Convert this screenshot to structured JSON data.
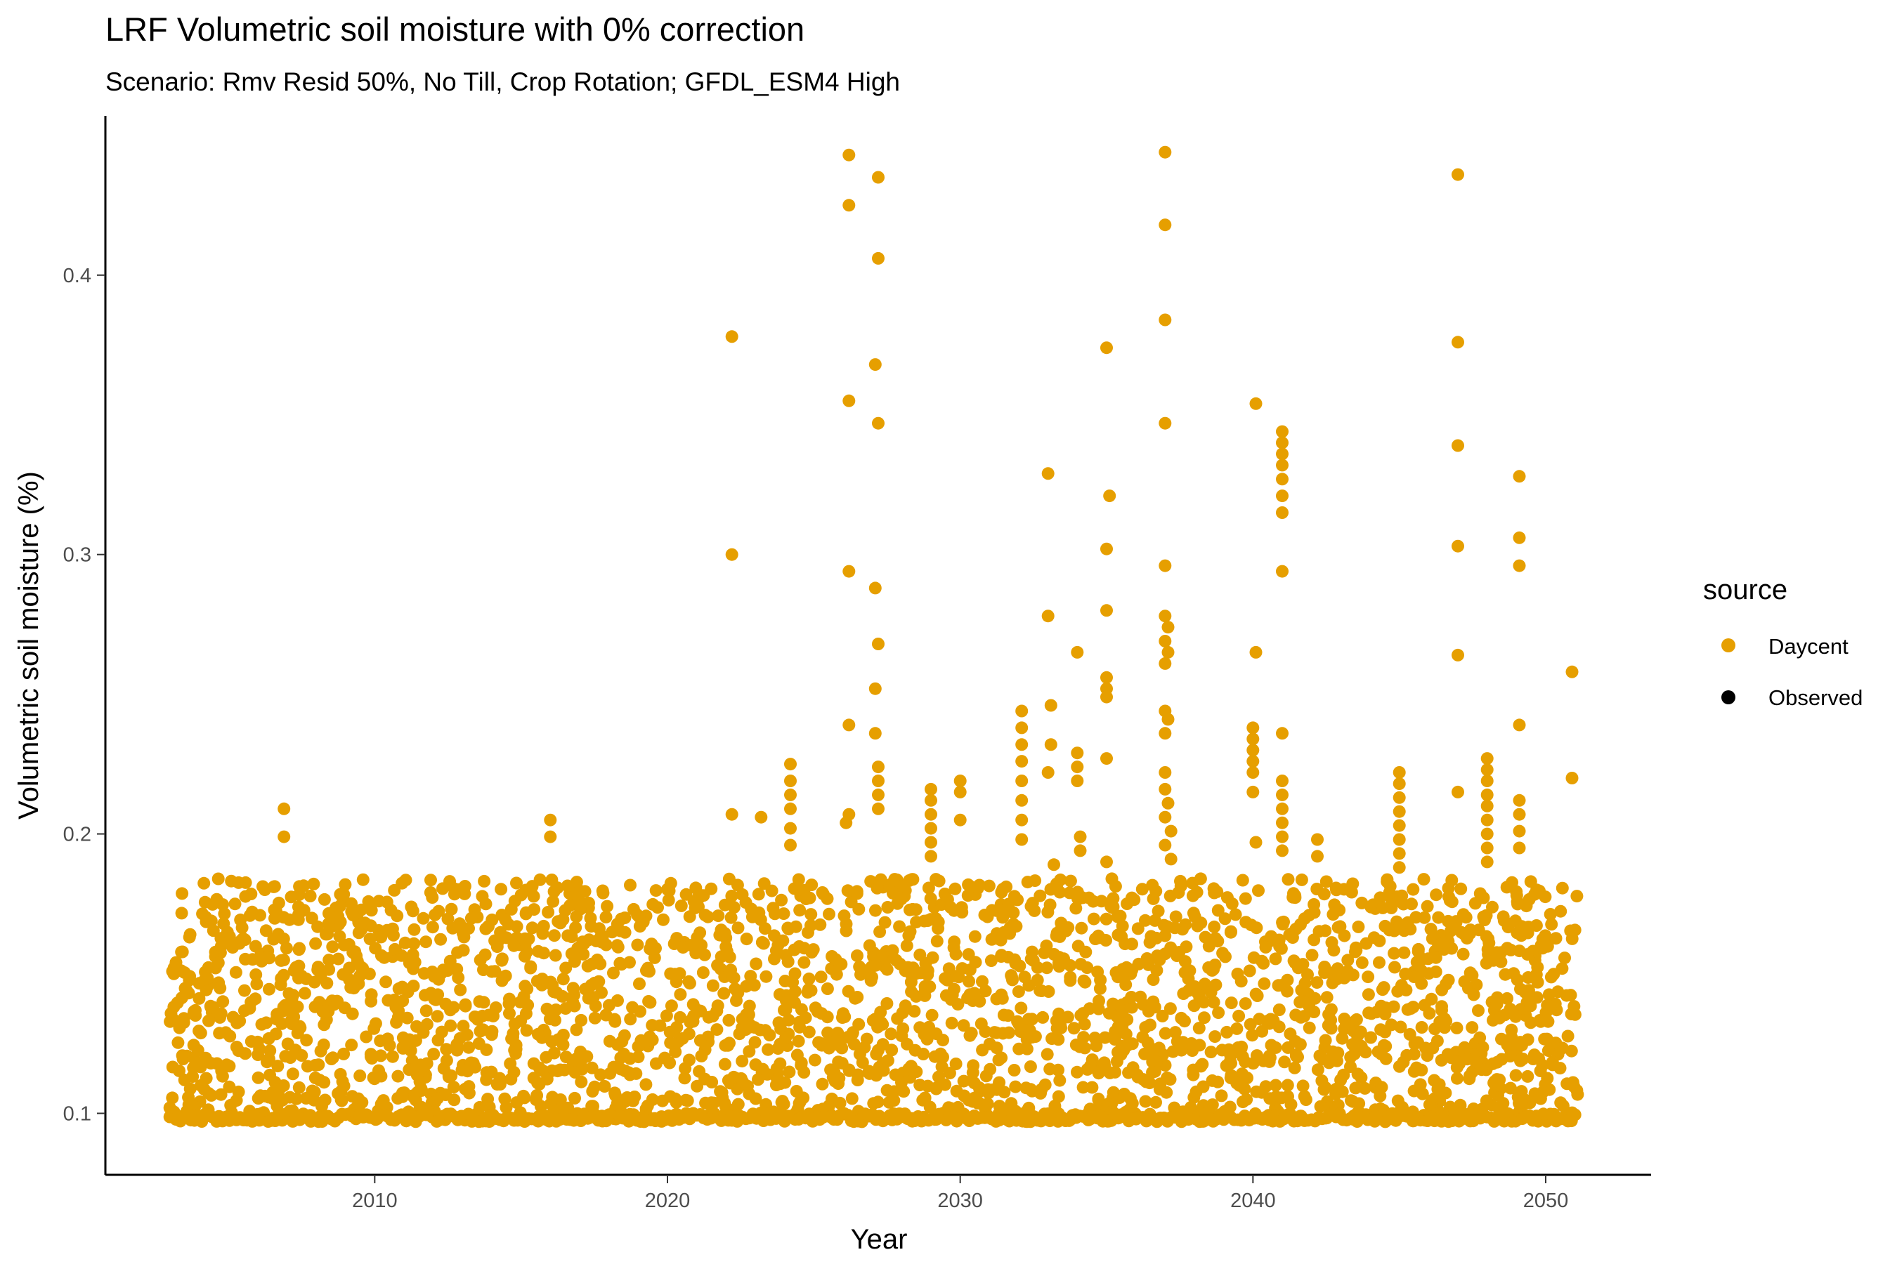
{
  "chart_data": {
    "type": "scatter",
    "title": "LRF Volumetric soil moisture with 0% correction",
    "subtitle": "Scenario: Rmv Resid 50%, No Till, Crop Rotation; GFDL_ESM4 High",
    "xlabel": "Year",
    "ylabel": "Volumetric soil moisture (%)",
    "xlim": [
      2000.8,
      2053.6
    ],
    "ylim": [
      0.078,
      0.457
    ],
    "x_ticks": [
      2010,
      2020,
      2030,
      2040,
      2050
    ],
    "x_tick_labels": [
      "2010",
      "2020",
      "2030",
      "2040",
      "2050"
    ],
    "y_ticks": [
      0.1,
      0.2,
      0.3,
      0.4
    ],
    "y_tick_labels": [
      "0.1",
      "0.2",
      "0.3",
      "0.4"
    ],
    "grid": false,
    "legend": {
      "title": "source",
      "position": "right",
      "entries": [
        {
          "name": "Daycent",
          "color": "#E69F00"
        },
        {
          "name": "Observed",
          "color": "#000000"
        }
      ]
    },
    "series": [
      {
        "name": "Daycent",
        "color": "#E69F00",
        "base_band": {
          "x_start": 2003.0,
          "x_end": 2051.1,
          "y_min": 0.097,
          "y_max": 0.184
        },
        "points": [
          {
            "x": 2003.0,
            "y": 0.102
          },
          {
            "x": 2006.9,
            "y": 0.209
          },
          {
            "x": 2006.9,
            "y": 0.199
          },
          {
            "x": 2016.0,
            "y": 0.205
          },
          {
            "x": 2016.0,
            "y": 0.199
          },
          {
            "x": 2022.2,
            "y": 0.378
          },
          {
            "x": 2022.2,
            "y": 0.3
          },
          {
            "x": 2022.2,
            "y": 0.207
          },
          {
            "x": 2023.2,
            "y": 0.206
          },
          {
            "x": 2024.2,
            "y": 0.225
          },
          {
            "x": 2024.2,
            "y": 0.219
          },
          {
            "x": 2024.2,
            "y": 0.214
          },
          {
            "x": 2024.2,
            "y": 0.209
          },
          {
            "x": 2024.2,
            "y": 0.202
          },
          {
            "x": 2024.2,
            "y": 0.196
          },
          {
            "x": 2026.2,
            "y": 0.443
          },
          {
            "x": 2026.2,
            "y": 0.425
          },
          {
            "x": 2026.2,
            "y": 0.355
          },
          {
            "x": 2026.2,
            "y": 0.294
          },
          {
            "x": 2026.2,
            "y": 0.239
          },
          {
            "x": 2026.2,
            "y": 0.207
          },
          {
            "x": 2026.1,
            "y": 0.204
          },
          {
            "x": 2027.2,
            "y": 0.435
          },
          {
            "x": 2027.2,
            "y": 0.406
          },
          {
            "x": 2027.1,
            "y": 0.368
          },
          {
            "x": 2027.2,
            "y": 0.347
          },
          {
            "x": 2027.1,
            "y": 0.288
          },
          {
            "x": 2027.2,
            "y": 0.268
          },
          {
            "x": 2027.1,
            "y": 0.252
          },
          {
            "x": 2027.1,
            "y": 0.236
          },
          {
            "x": 2027.2,
            "y": 0.224
          },
          {
            "x": 2027.2,
            "y": 0.219
          },
          {
            "x": 2027.2,
            "y": 0.214
          },
          {
            "x": 2027.2,
            "y": 0.209
          },
          {
            "x": 2029.0,
            "y": 0.216
          },
          {
            "x": 2029.0,
            "y": 0.212
          },
          {
            "x": 2029.0,
            "y": 0.207
          },
          {
            "x": 2029.0,
            "y": 0.202
          },
          {
            "x": 2029.0,
            "y": 0.197
          },
          {
            "x": 2029.0,
            "y": 0.192
          },
          {
            "x": 2030.0,
            "y": 0.219
          },
          {
            "x": 2030.0,
            "y": 0.215
          },
          {
            "x": 2030.0,
            "y": 0.205
          },
          {
            "x": 2033.0,
            "y": 0.329
          },
          {
            "x": 2033.0,
            "y": 0.278
          },
          {
            "x": 2033.1,
            "y": 0.246
          },
          {
            "x": 2033.1,
            "y": 0.232
          },
          {
            "x": 2033.0,
            "y": 0.222
          },
          {
            "x": 2033.2,
            "y": 0.189
          },
          {
            "x": 2032.1,
            "y": 0.244
          },
          {
            "x": 2032.1,
            "y": 0.238
          },
          {
            "x": 2032.1,
            "y": 0.232
          },
          {
            "x": 2032.1,
            "y": 0.226
          },
          {
            "x": 2032.1,
            "y": 0.219
          },
          {
            "x": 2032.1,
            "y": 0.212
          },
          {
            "x": 2032.1,
            "y": 0.205
          },
          {
            "x": 2032.1,
            "y": 0.198
          },
          {
            "x": 2034.0,
            "y": 0.265
          },
          {
            "x": 2034.0,
            "y": 0.229
          },
          {
            "x": 2034.0,
            "y": 0.224
          },
          {
            "x": 2034.0,
            "y": 0.219
          },
          {
            "x": 2034.1,
            "y": 0.199
          },
          {
            "x": 2034.1,
            "y": 0.194
          },
          {
            "x": 2035.0,
            "y": 0.374
          },
          {
            "x": 2035.1,
            "y": 0.321
          },
          {
            "x": 2035.0,
            "y": 0.302
          },
          {
            "x": 2035.0,
            "y": 0.28
          },
          {
            "x": 2035.0,
            "y": 0.256
          },
          {
            "x": 2035.0,
            "y": 0.252
          },
          {
            "x": 2035.0,
            "y": 0.249
          },
          {
            "x": 2035.0,
            "y": 0.227
          },
          {
            "x": 2035.0,
            "y": 0.19
          },
          {
            "x": 2037.0,
            "y": 0.444
          },
          {
            "x": 2037.0,
            "y": 0.418
          },
          {
            "x": 2037.0,
            "y": 0.384
          },
          {
            "x": 2037.0,
            "y": 0.347
          },
          {
            "x": 2037.0,
            "y": 0.296
          },
          {
            "x": 2037.0,
            "y": 0.278
          },
          {
            "x": 2037.1,
            "y": 0.274
          },
          {
            "x": 2037.0,
            "y": 0.269
          },
          {
            "x": 2037.1,
            "y": 0.265
          },
          {
            "x": 2037.0,
            "y": 0.261
          },
          {
            "x": 2037.0,
            "y": 0.244
          },
          {
            "x": 2037.1,
            "y": 0.241
          },
          {
            "x": 2037.0,
            "y": 0.236
          },
          {
            "x": 2037.0,
            "y": 0.222
          },
          {
            "x": 2037.0,
            "y": 0.216
          },
          {
            "x": 2037.1,
            "y": 0.211
          },
          {
            "x": 2037.0,
            "y": 0.206
          },
          {
            "x": 2037.2,
            "y": 0.201
          },
          {
            "x": 2037.0,
            "y": 0.196
          },
          {
            "x": 2037.2,
            "y": 0.191
          },
          {
            "x": 2040.1,
            "y": 0.354
          },
          {
            "x": 2040.1,
            "y": 0.265
          },
          {
            "x": 2040.0,
            "y": 0.238
          },
          {
            "x": 2040.0,
            "y": 0.234
          },
          {
            "x": 2040.0,
            "y": 0.23
          },
          {
            "x": 2040.0,
            "y": 0.226
          },
          {
            "x": 2040.0,
            "y": 0.222
          },
          {
            "x": 2040.0,
            "y": 0.215
          },
          {
            "x": 2040.1,
            "y": 0.197
          },
          {
            "x": 2041.0,
            "y": 0.344
          },
          {
            "x": 2041.0,
            "y": 0.34
          },
          {
            "x": 2041.0,
            "y": 0.336
          },
          {
            "x": 2041.0,
            "y": 0.332
          },
          {
            "x": 2041.0,
            "y": 0.327
          },
          {
            "x": 2041.0,
            "y": 0.321
          },
          {
            "x": 2041.0,
            "y": 0.315
          },
          {
            "x": 2041.0,
            "y": 0.294
          },
          {
            "x": 2041.0,
            "y": 0.236
          },
          {
            "x": 2041.0,
            "y": 0.219
          },
          {
            "x": 2041.0,
            "y": 0.214
          },
          {
            "x": 2041.0,
            "y": 0.209
          },
          {
            "x": 2041.0,
            "y": 0.204
          },
          {
            "x": 2041.0,
            "y": 0.199
          },
          {
            "x": 2041.0,
            "y": 0.194
          },
          {
            "x": 2042.2,
            "y": 0.198
          },
          {
            "x": 2042.2,
            "y": 0.192
          },
          {
            "x": 2045.0,
            "y": 0.222
          },
          {
            "x": 2045.0,
            "y": 0.218
          },
          {
            "x": 2045.0,
            "y": 0.213
          },
          {
            "x": 2045.0,
            "y": 0.208
          },
          {
            "x": 2045.0,
            "y": 0.203
          },
          {
            "x": 2045.0,
            "y": 0.198
          },
          {
            "x": 2045.0,
            "y": 0.193
          },
          {
            "x": 2045.0,
            "y": 0.188
          },
          {
            "x": 2047.0,
            "y": 0.436
          },
          {
            "x": 2047.0,
            "y": 0.376
          },
          {
            "x": 2047.0,
            "y": 0.339
          },
          {
            "x": 2047.0,
            "y": 0.303
          },
          {
            "x": 2047.0,
            "y": 0.264
          },
          {
            "x": 2047.0,
            "y": 0.215
          },
          {
            "x": 2048.0,
            "y": 0.227
          },
          {
            "x": 2048.0,
            "y": 0.223
          },
          {
            "x": 2048.0,
            "y": 0.219
          },
          {
            "x": 2048.0,
            "y": 0.214
          },
          {
            "x": 2048.0,
            "y": 0.21
          },
          {
            "x": 2048.0,
            "y": 0.205
          },
          {
            "x": 2048.0,
            "y": 0.2
          },
          {
            "x": 2048.0,
            "y": 0.195
          },
          {
            "x": 2048.0,
            "y": 0.19
          },
          {
            "x": 2049.1,
            "y": 0.328
          },
          {
            "x": 2049.1,
            "y": 0.306
          },
          {
            "x": 2049.1,
            "y": 0.296
          },
          {
            "x": 2049.1,
            "y": 0.239
          },
          {
            "x": 2049.1,
            "y": 0.212
          },
          {
            "x": 2049.1,
            "y": 0.207
          },
          {
            "x": 2049.1,
            "y": 0.201
          },
          {
            "x": 2049.1,
            "y": 0.195
          },
          {
            "x": 2050.9,
            "y": 0.258
          },
          {
            "x": 2050.9,
            "y": 0.22
          }
        ]
      },
      {
        "name": "Observed",
        "color": "#000000",
        "points": []
      }
    ]
  }
}
